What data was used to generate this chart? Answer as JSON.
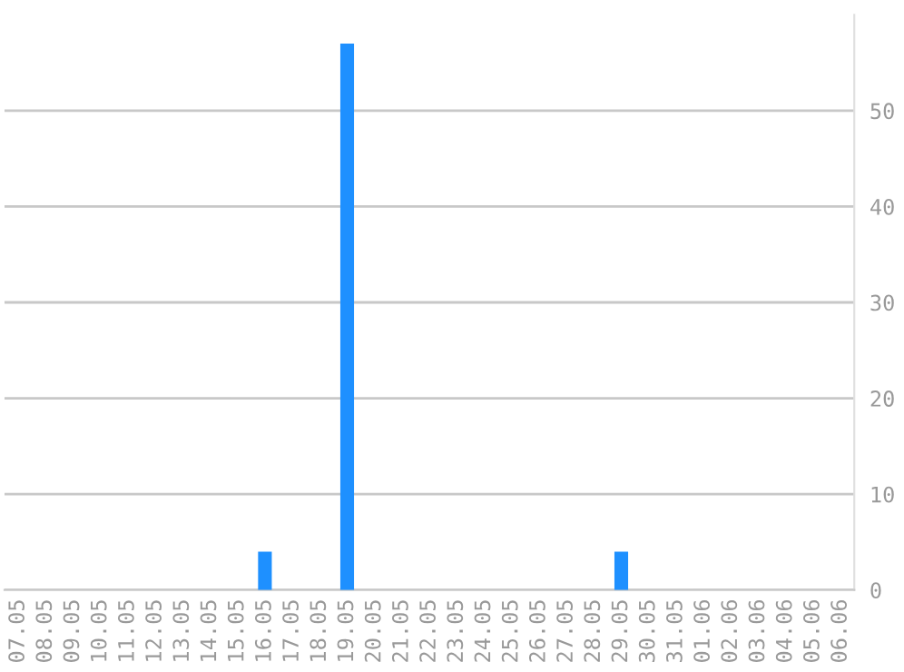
{
  "chart_data": {
    "type": "bar",
    "categories": [
      "07.05",
      "08.05",
      "09.05",
      "10.05",
      "11.05",
      "12.05",
      "13.05",
      "14.05",
      "15.05",
      "16.05",
      "17.05",
      "18.05",
      "19.05",
      "20.05",
      "21.05",
      "22.05",
      "23.05",
      "24.05",
      "25.05",
      "26.05",
      "27.05",
      "28.05",
      "29.05",
      "30.05",
      "31.05",
      "01.06",
      "02.06",
      "03.06",
      "04.06",
      "05.06",
      "06.06"
    ],
    "values": [
      0,
      0,
      0,
      0,
      0,
      0,
      0,
      0,
      0,
      4,
      0,
      0,
      57,
      0,
      0,
      0,
      0,
      0,
      0,
      0,
      0,
      0,
      4,
      0,
      0,
      0,
      0,
      0,
      0,
      0,
      0
    ],
    "color": "#1e90ff",
    "ylim": [
      0,
      60
    ],
    "yticks": [
      0,
      10,
      20,
      30,
      40,
      50
    ],
    "grid": "y",
    "legend": false
  }
}
